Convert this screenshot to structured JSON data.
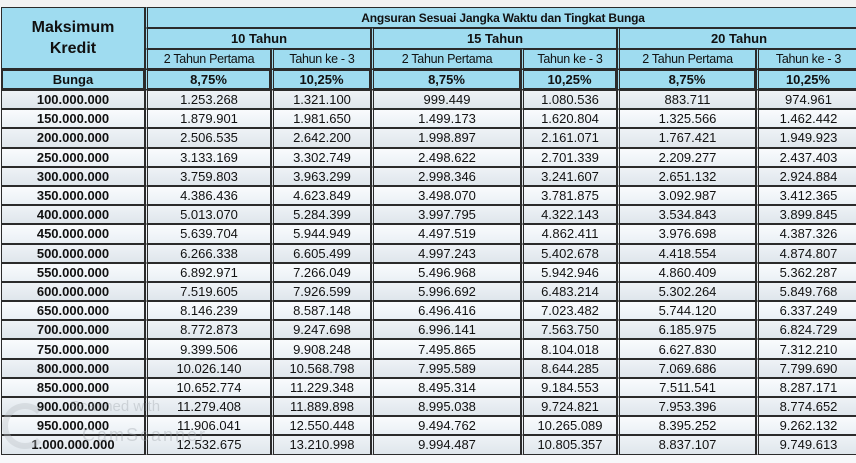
{
  "header": {
    "left_title_line1": "Maksimum",
    "left_title_line2": "Kredit",
    "main_title": "Angsuran Sesuai Jangka Waktu dan Tingkat Bunga",
    "terms": [
      {
        "label": "10 Tahun"
      },
      {
        "label": "15 Tahun"
      },
      {
        "label": "20 Tahun"
      }
    ],
    "sub_columns": [
      "2 Tahun Pertama",
      "Tahun ke - 3",
      "2 Tahun Pertama",
      "Tahun ke - 3",
      "2 Tahun Pertama",
      "Tahun ke - 3"
    ]
  },
  "bunga_row": {
    "label": "Bunga",
    "rates": [
      "8,75%",
      "10,25%",
      "8,75%",
      "10,25%",
      "8,75%",
      "10,25%"
    ]
  },
  "rows": [
    {
      "kredit": "100.000.000",
      "v": [
        "1.253.268",
        "1.321.100",
        "999.449",
        "1.080.536",
        "883.711",
        "974.961"
      ]
    },
    {
      "kredit": "150.000.000",
      "v": [
        "1.879.901",
        "1.981.650",
        "1.499.173",
        "1.620.804",
        "1.325.566",
        "1.462.442"
      ]
    },
    {
      "kredit": "200.000.000",
      "v": [
        "2.506.535",
        "2.642.200",
        "1.998.897",
        "2.161.071",
        "1.767.421",
        "1.949.923"
      ]
    },
    {
      "kredit": "250.000.000",
      "v": [
        "3.133.169",
        "3.302.749",
        "2.498.622",
        "2.701.339",
        "2.209.277",
        "2.437.403"
      ]
    },
    {
      "kredit": "300.000.000",
      "v": [
        "3.759.803",
        "3.963.299",
        "2.998.346",
        "3.241.607",
        "2.651.132",
        "2.924.884"
      ]
    },
    {
      "kredit": "350.000.000",
      "v": [
        "4.386.436",
        "4.623.849",
        "3.498.070",
        "3.781.875",
        "3.092.987",
        "3.412.365"
      ]
    },
    {
      "kredit": "400.000.000",
      "v": [
        "5.013.070",
        "5.284.399",
        "3.997.795",
        "4.322.143",
        "3.534.843",
        "3.899.845"
      ]
    },
    {
      "kredit": "450.000.000",
      "v": [
        "5.639.704",
        "5.944.949",
        "4.497.519",
        "4.862.411",
        "3.976.698",
        "4.387.326"
      ]
    },
    {
      "kredit": "500.000.000",
      "v": [
        "6.266.338",
        "6.605.499",
        "4.997.243",
        "5.402.678",
        "4.418.554",
        "4.874.807"
      ]
    },
    {
      "kredit": "550.000.000",
      "v": [
        "6.892.971",
        "7.266.049",
        "5.496.968",
        "5.942.946",
        "4.860.409",
        "5.362.287"
      ]
    },
    {
      "kredit": "600.000.000",
      "v": [
        "7.519.605",
        "7.926.599",
        "5.996.692",
        "6.483.214",
        "5.302.264",
        "5.849.768"
      ]
    },
    {
      "kredit": "650.000.000",
      "v": [
        "8.146.239",
        "8.587.148",
        "6.496.416",
        "7.023.482",
        "5.744.120",
        "6.337.249"
      ]
    },
    {
      "kredit": "700.000.000",
      "v": [
        "8.772.873",
        "9.247.698",
        "6.996.141",
        "7.563.750",
        "6.185.975",
        "6.824.729"
      ]
    },
    {
      "kredit": "750.000.000",
      "v": [
        "9.399.506",
        "9.908.248",
        "7.495.865",
        "8.104.018",
        "6.627.830",
        "7.312.210"
      ]
    },
    {
      "kredit": "800.000.000",
      "v": [
        "10.026.140",
        "10.568.798",
        "7.995.589",
        "8.644.285",
        "7.069.686",
        "7.799.690"
      ]
    },
    {
      "kredit": "850.000.000",
      "v": [
        "10.652.774",
        "11.229.348",
        "8.495.314",
        "9.184.553",
        "7.511.541",
        "8.287.171"
      ]
    },
    {
      "kredit": "900.000.000",
      "v": [
        "11.279.408",
        "11.889.898",
        "8.995.038",
        "9.724.821",
        "7.953.396",
        "8.774.652"
      ]
    },
    {
      "kredit": "950.000.000",
      "v": [
        "11.906.041",
        "12.550.448",
        "9.494.762",
        "10.265.089",
        "8.395.252",
        "9.262.132"
      ]
    },
    {
      "kredit": "1.000.000.000",
      "v": [
        "12.532.675",
        "13.210.998",
        "9.994.487",
        "10.805.357",
        "8.837.107",
        "9.749.613"
      ]
    }
  ],
  "watermark": {
    "line1": "Scanned with",
    "line2": "CamScanner"
  },
  "colors": {
    "header_bg": "#9fdcf0",
    "border": "#2b2b2b",
    "row_bg": "#eef2f6"
  }
}
